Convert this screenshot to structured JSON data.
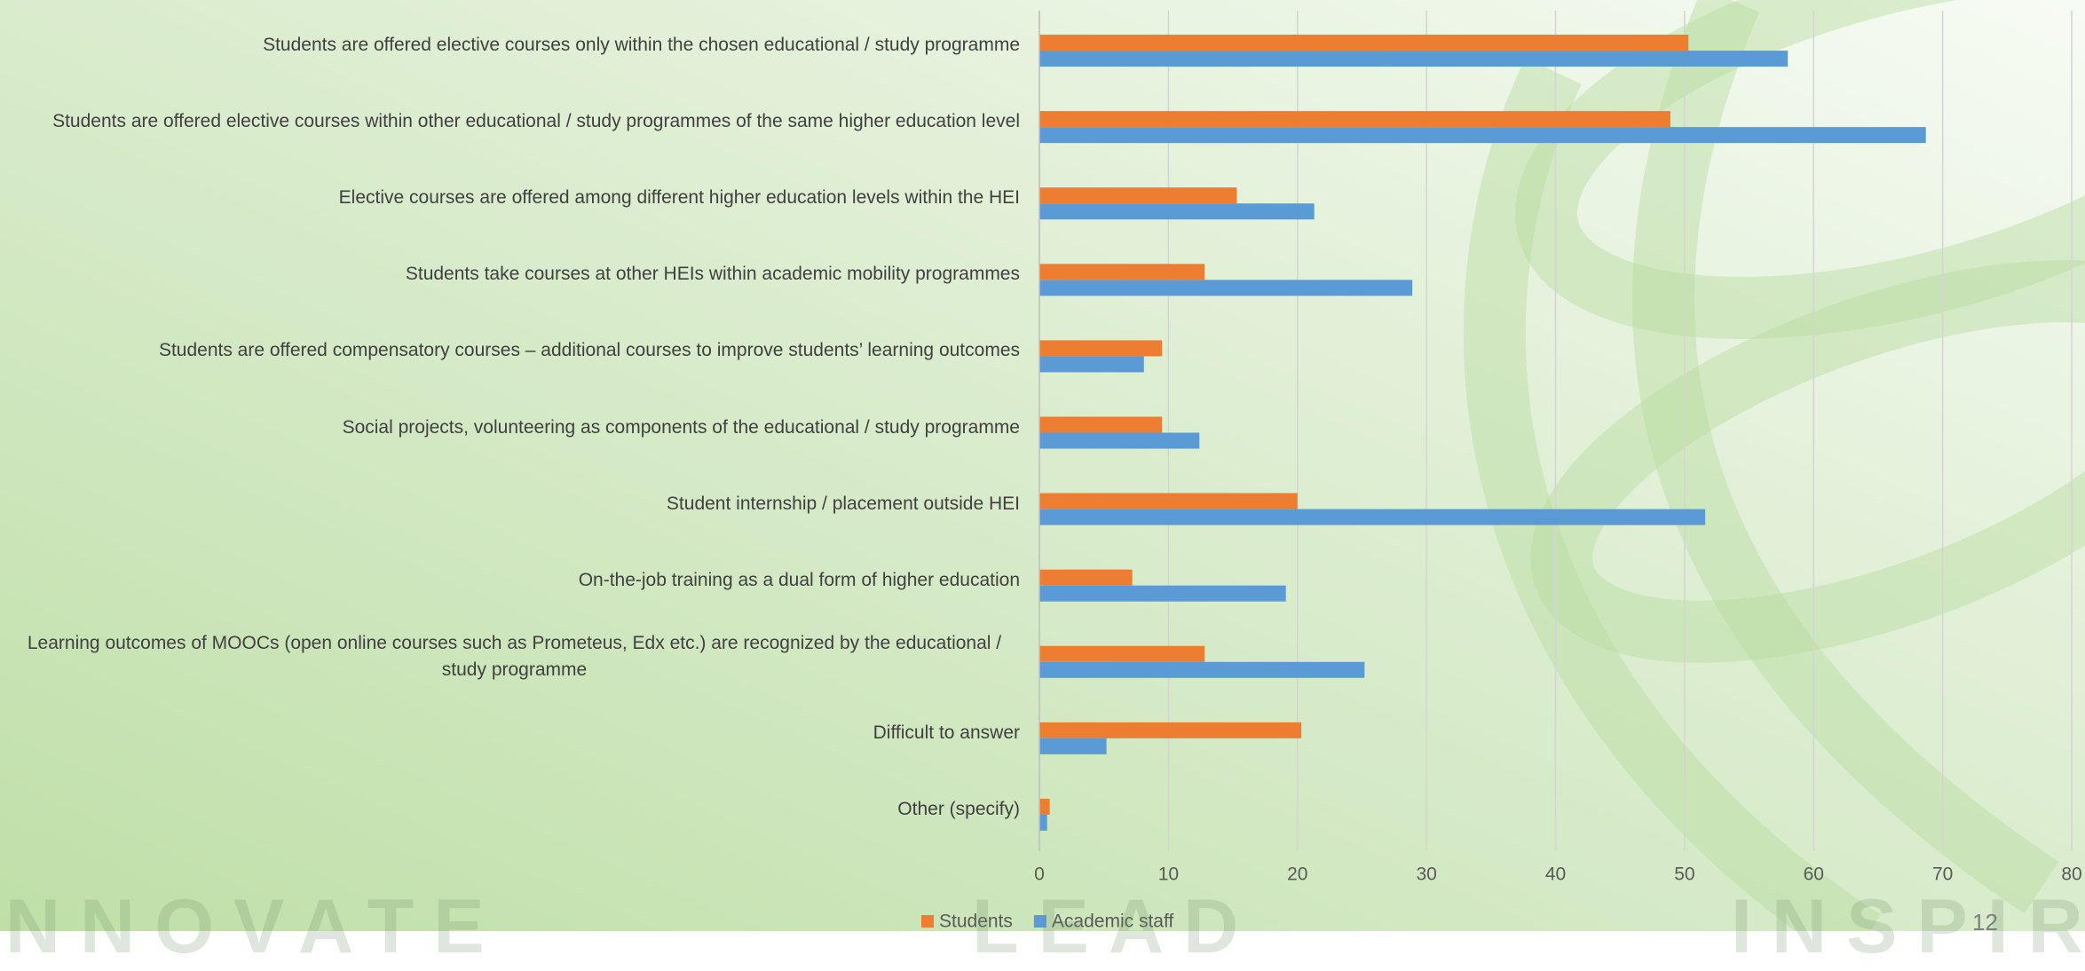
{
  "chart_data": {
    "type": "hbar",
    "categories": [
      "Students are offered elective courses only within the chosen educational / study programme",
      "Students are offered elective courses within other educational / study programmes of the same higher education level",
      "Elective courses are offered among different higher education levels within the HEI",
      "Students take courses at other HEIs within academic mobility programmes",
      "Students are offered compensatory courses – additional courses to improve students’ learning outcomes",
      "Social projects, volunteering as components of the educational / study programme",
      "Student internship / placement outside HEI",
      "On-the-job training as a dual form of  higher education",
      "Learning outcomes of MOOCs (open online courses such as Prometeus, Edx etc.) are recognized by the educational / study programme",
      "Difficult to answer",
      "Other (specify)"
    ],
    "series": [
      {
        "name": "Students",
        "color": "#ed7d31",
        "values": [
          50.3,
          48.9,
          15.3,
          12.8,
          9.5,
          9.5,
          20.0,
          7.2,
          12.8,
          20.3,
          0.8
        ]
      },
      {
        "name": "Academic staff",
        "color": "#5b9bd5",
        "values": [
          58.0,
          68.7,
          21.3,
          28.9,
          8.1,
          12.4,
          51.6,
          19.1,
          25.2,
          5.2,
          0.6
        ]
      }
    ],
    "xlim": [
      0,
      80
    ],
    "xticks": [
      0,
      10,
      20,
      30,
      40,
      50,
      60,
      70,
      80
    ],
    "grid": true,
    "legend": "bottom"
  },
  "slide": {
    "watermarks": [
      "INNOVATE",
      "LEAD",
      "INSPIRE"
    ],
    "page_number": "12"
  }
}
